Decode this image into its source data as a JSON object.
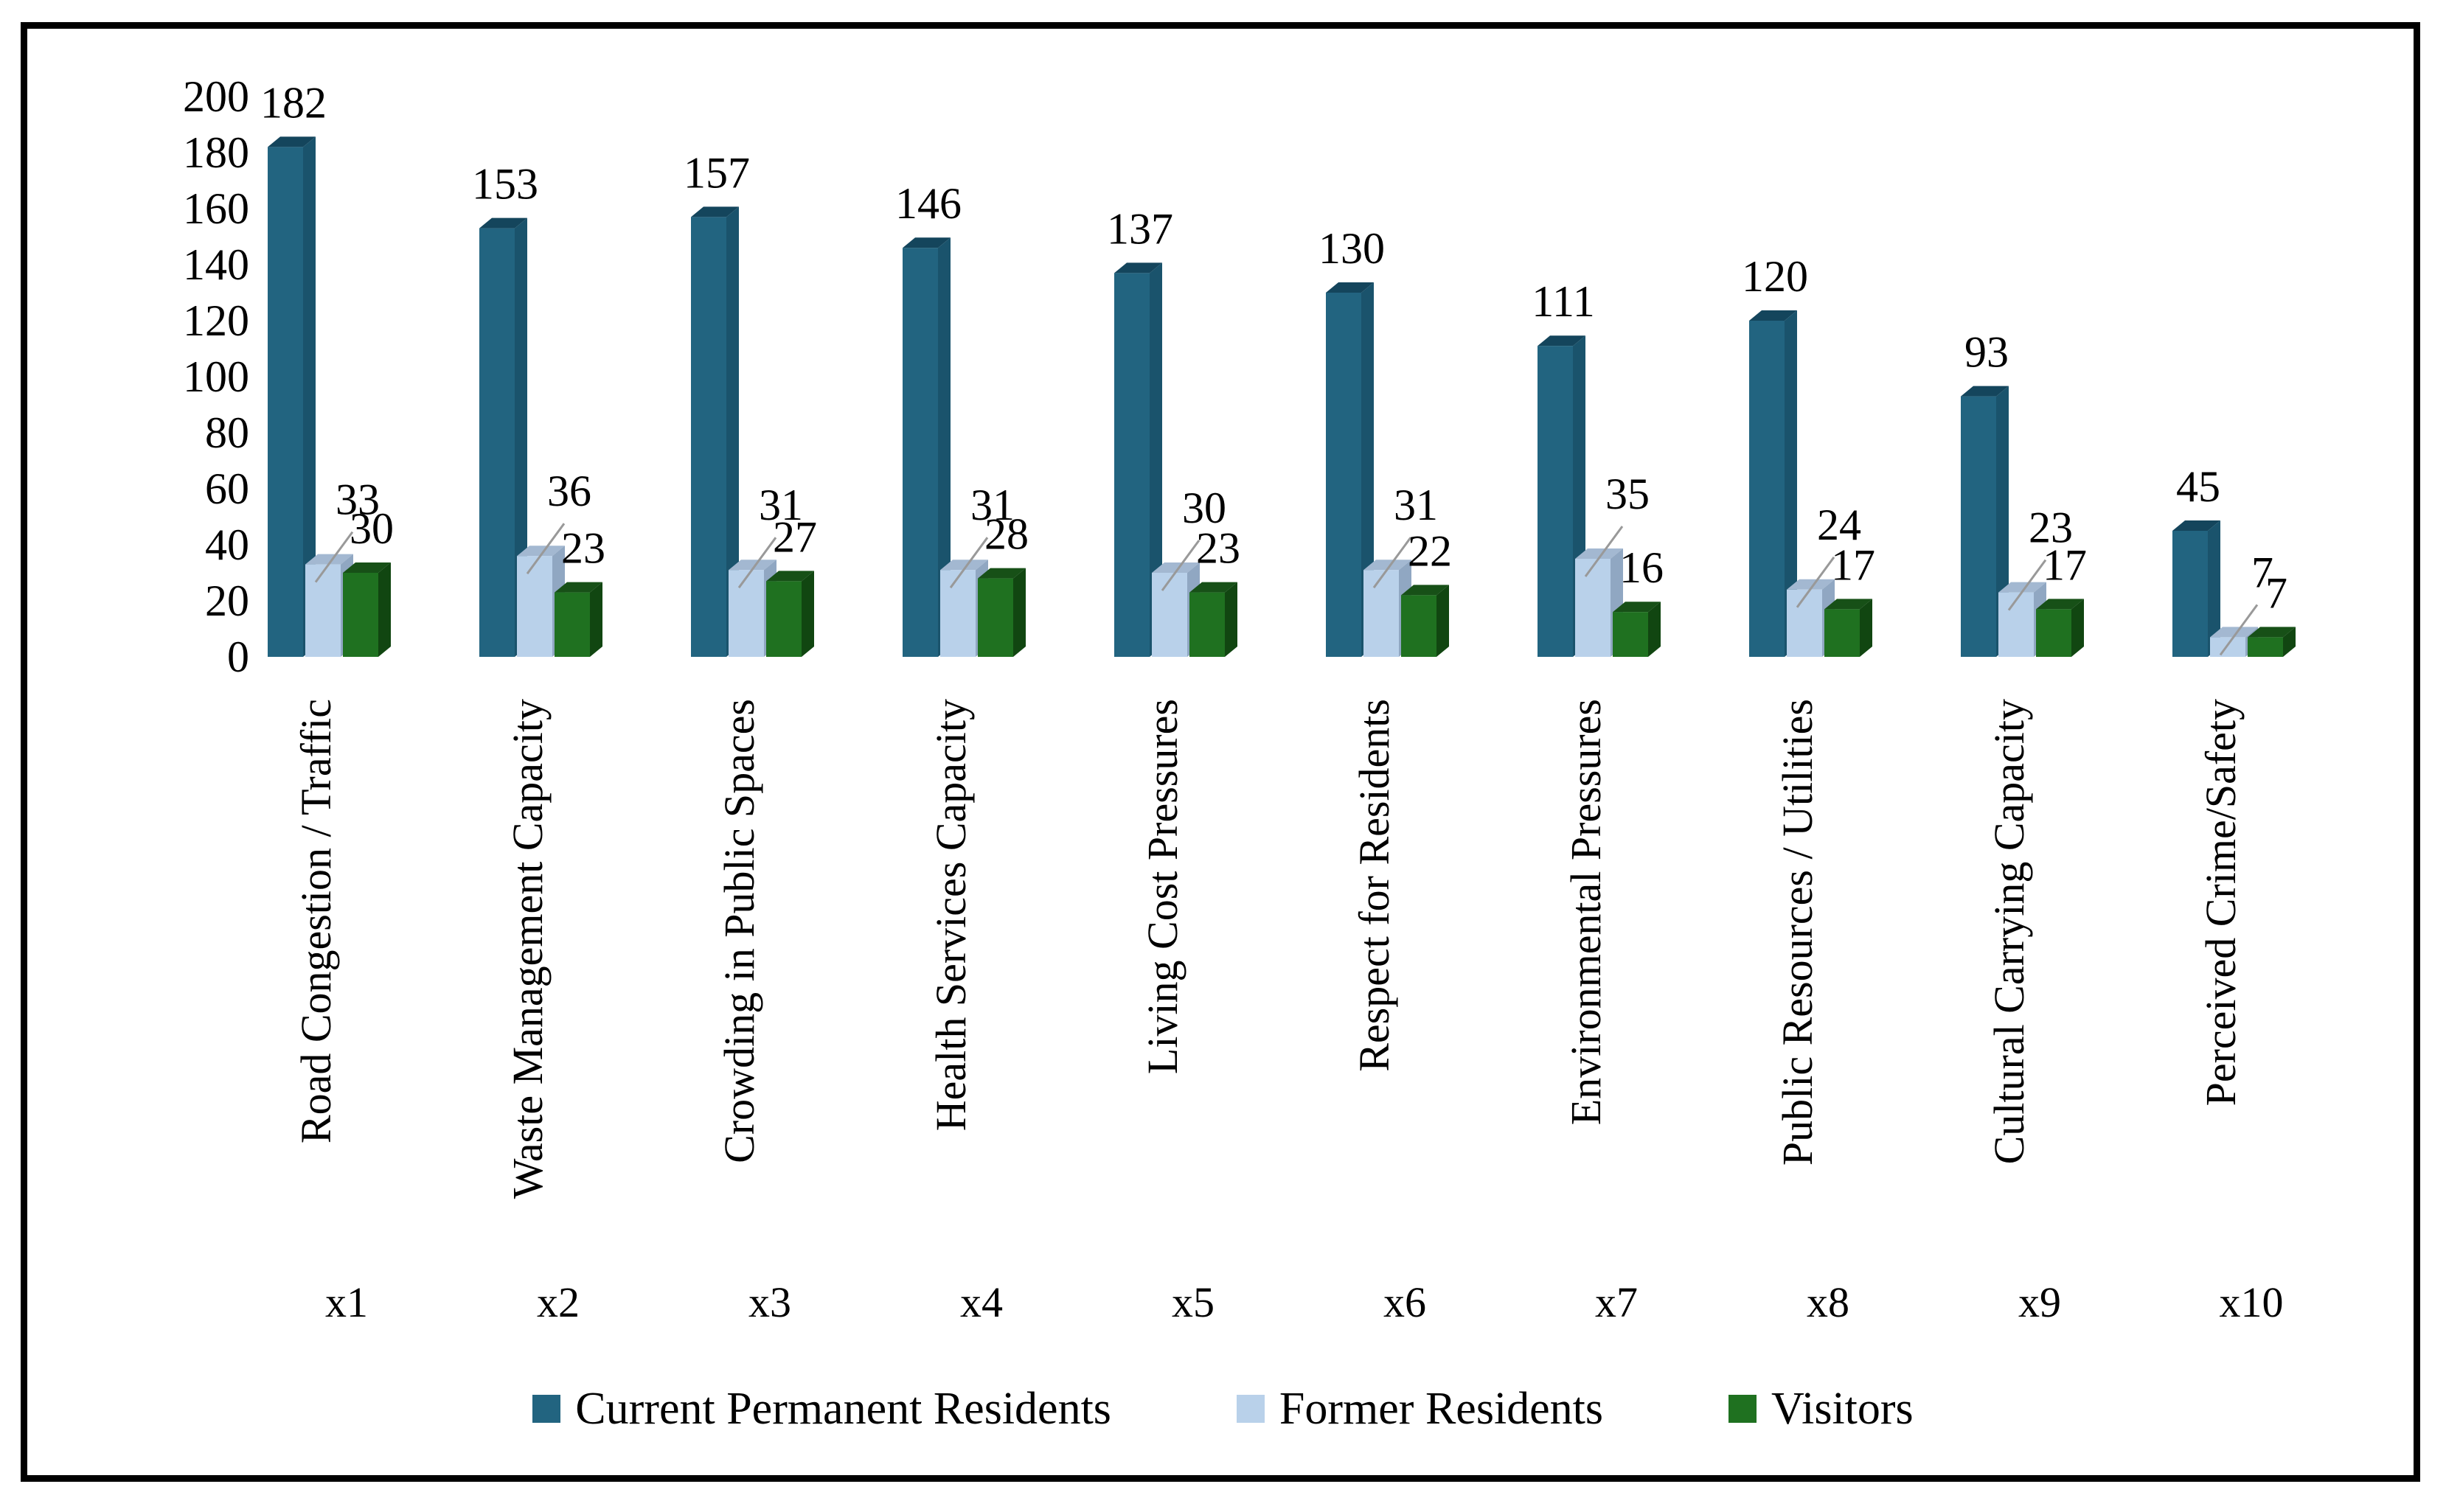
{
  "frame": {
    "background": "#ffffff",
    "border_color": "#000000"
  },
  "chart_data": {
    "type": "bar",
    "style": "3d-clustered-column",
    "title": "",
    "xlabel": "",
    "ylabel": "",
    "grid": false,
    "data_labels": true,
    "legend_position": "bottom",
    "text_color": "#000000",
    "leader_line_color": "#999999",
    "y_axis": {
      "min": 0,
      "max": 200,
      "step": 20,
      "ticks": [
        "0",
        "20",
        "40",
        "60",
        "80",
        "100",
        "120",
        "140",
        "160",
        "180",
        "200"
      ]
    },
    "categories": [
      "Road Congestion / Traffic",
      "Waste Management Capacity",
      "Crowding in Public Spaces",
      "Health Services Capacity",
      "Living Cost Pressures",
      "Respect for Residents",
      "Environmental Pressures",
      "Public Resources / Utilities",
      "Cultural Carrying Capacity",
      "Perceived Crime/Safety"
    ],
    "category_codes": [
      "x1",
      "x2",
      "x3",
      "x4",
      "x5",
      "x6",
      "x7",
      "x8",
      "x9",
      "x10"
    ],
    "series": [
      {
        "name": "Current Permanent Residents",
        "color": "#226480",
        "color_top": "#14455C",
        "color_side": "#1A536C",
        "values": [
          182,
          153,
          157,
          146,
          137,
          130,
          111,
          120,
          93,
          45
        ]
      },
      {
        "name": "Former Residents",
        "color": "#B9D1EA",
        "color_top": "#A3B8D1",
        "color_side": "#90A7C2",
        "values": [
          33,
          36,
          31,
          31,
          30,
          31,
          35,
          24,
          23,
          7
        ]
      },
      {
        "name": "Visitors",
        "color": "#1F7120",
        "color_top": "#175017",
        "color_side": "#114611",
        "values": [
          30,
          23,
          27,
          28,
          23,
          22,
          16,
          17,
          17,
          7
        ]
      }
    ]
  }
}
